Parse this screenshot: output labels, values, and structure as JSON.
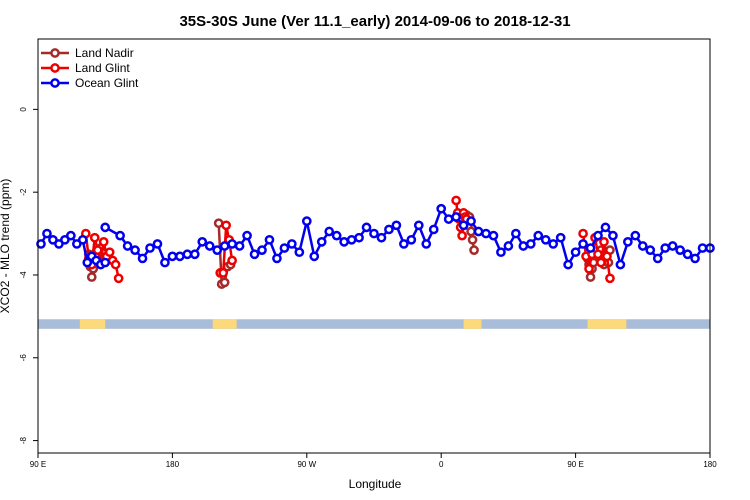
{
  "chart_data": {
    "type": "line",
    "title": "35S-30S June (Ver 11.1_early)   2014-09-06 to 2018-12-31",
    "xlabel": "Longitude",
    "ylabel": "XCO2 - MLO trend (ppm)",
    "x_ticks": [
      {
        "value": -180,
        "label": "90 E"
      },
      {
        "value": -90,
        "label": "180"
      },
      {
        "value": 0,
        "label": "90 W"
      },
      {
        "value": 90,
        "label": "0"
      },
      {
        "value": 180,
        "label": "90 E"
      },
      {
        "value": 270,
        "label": "180"
      }
    ],
    "y_ticks": [
      {
        "value": 0,
        "label": "0"
      },
      {
        "value": -2,
        "label": "-2"
      },
      {
        "value": -4,
        "label": "-4"
      },
      {
        "value": -6,
        "label": "-6"
      },
      {
        "value": -8,
        "label": "-8"
      }
    ],
    "xlim": [
      -180,
      270
    ],
    "ylim": [
      -8.3,
      1.7
    ],
    "legend_position": "top-left",
    "series": [
      {
        "name": "Land Nadir",
        "color": "#a52a2a",
        "segments": [
          {
            "x": [
              -146,
              -145,
              -144,
              -143,
              -142,
              -141,
              -140,
              -139,
              -138,
              -137
            ],
            "y": [
              -3.5,
              -3.8,
              -4.05,
              -3.85,
              -3.7,
              -3.45,
              -3.55,
              -3.7,
              -3.35,
              -3.45
            ]
          },
          {
            "x": [
              -59,
              -57,
              -55,
              -53,
              -51
            ],
            "y": [
              -2.75,
              -4.22,
              -4.18,
              -3.8,
              -3.75
            ]
          },
          {
            "x": [
              107,
              108,
              109,
              110,
              111,
              112
            ],
            "y": [
              -2.55,
              -2.8,
              -2.6,
              -2.95,
              -3.15,
              -3.4
            ]
          },
          {
            "x": [
              188,
              189,
              190,
              191,
              192,
              196,
              197,
              199,
              200,
              202,
              203
            ],
            "y": [
              -3.6,
              -3.75,
              -4.05,
              -3.85,
              -3.7,
              -3.5,
              -3.4,
              -3.75,
              -3.6,
              -3.7,
              -3.4
            ]
          }
        ]
      },
      {
        "name": "Land Glint",
        "color": "#ee0000",
        "segments": [
          {
            "x": [
              -148,
              -146,
              -144,
              -142,
              -140,
              -138,
              -136,
              -134,
              -132,
              -130,
              -128,
              -126
            ],
            "y": [
              -3.0,
              -3.6,
              -3.75,
              -3.1,
              -3.4,
              -3.7,
              -3.2,
              -3.55,
              -3.45,
              -3.65,
              -3.75,
              -4.08
            ]
          },
          {
            "x": [
              -58,
              -56,
              -54,
              -52,
              -50
            ],
            "y": [
              -3.95,
              -3.95,
              -2.8,
              -3.15,
              -3.65
            ]
          },
          {
            "x": [
              100,
              101,
              102,
              103,
              104,
              105,
              106,
              107
            ],
            "y": [
              -2.2,
              -2.5,
              -2.65,
              -2.85,
              -3.05,
              -2.5,
              -2.6,
              -2.65
            ]
          },
          {
            "x": [
              185,
              187,
              189,
              191,
              193,
              195,
              197,
              199,
              201,
              203
            ],
            "y": [
              -3.0,
              -3.55,
              -3.85,
              -3.5,
              -3.1,
              -3.5,
              -3.7,
              -3.2,
              -3.55,
              -4.08
            ]
          }
        ]
      },
      {
        "name": "Ocean Glint",
        "color": "#0000ee",
        "segments": [
          {
            "x": [
              -178,
              -174,
              -170,
              -166,
              -162,
              -158,
              -154,
              -150,
              -147,
              -144,
              -141,
              -138,
              -135
            ],
            "y": [
              -3.25,
              -3.0,
              -3.15,
              -3.25,
              -3.15,
              -3.05,
              -3.25,
              -3.15,
              -3.7,
              -3.55,
              -3.65,
              -3.75,
              -3.7
            ]
          },
          {
            "x": [
              -135,
              -125,
              -120,
              -115,
              -110,
              -105,
              -100,
              -95,
              -90,
              -85,
              -80,
              -75,
              -70,
              -65,
              -60,
              -55,
              -50,
              -45,
              -40,
              -35,
              -30,
              -25,
              -20,
              -15,
              -10,
              -5,
              0,
              5,
              10,
              15,
              20,
              25,
              30,
              35,
              40,
              45,
              50,
              55,
              60,
              65,
              70,
              75,
              80,
              85,
              90,
              95,
              100,
              105,
              110,
              115,
              120,
              125,
              130,
              135,
              140,
              145,
              150,
              155,
              160,
              165,
              170,
              175,
              180,
              185,
              190,
              195,
              200,
              205,
              210,
              215,
              220,
              225,
              230,
              235,
              240,
              245,
              250,
              255,
              260,
              265,
              270
            ],
            "y": [
              -2.85,
              -3.05,
              -3.3,
              -3.4,
              -3.6,
              -3.35,
              -3.25,
              -3.7,
              -3.55,
              -3.55,
              -3.5,
              -3.5,
              -3.2,
              -3.3,
              -3.4,
              -3.3,
              -3.25,
              -3.3,
              -3.05,
              -3.5,
              -3.4,
              -3.15,
              -3.6,
              -3.35,
              -3.25,
              -3.45,
              -2.7,
              -3.55,
              -3.2,
              -2.95,
              -3.05,
              -3.2,
              -3.15,
              -3.1,
              -2.85,
              -3.0,
              -3.1,
              -2.9,
              -2.8,
              -3.25,
              -3.15,
              -2.8,
              -3.25,
              -2.9,
              -2.4,
              -2.65,
              -2.6,
              -2.8,
              -2.7,
              -2.95,
              -3.0,
              -3.05,
              -3.45,
              -3.3,
              -3.0,
              -3.3,
              -3.25,
              -3.05,
              -3.15,
              -3.25,
              -3.1,
              -3.75,
              -3.45,
              -3.25,
              -3.35,
              -3.05,
              -2.85,
              -3.05,
              -3.75,
              -3.2,
              -3.05,
              -3.3,
              -3.4,
              -3.6,
              -3.35,
              -3.3,
              -3.4,
              -3.5,
              -3.6,
              -3.35,
              -3.35
            ]
          }
        ]
      }
    ],
    "land_band": {
      "y_from": -5.07,
      "y_to": -5.3,
      "ocean_color": "#a9bcd8",
      "land_color": "#fcd97a",
      "land_ranges": [
        [
          -152,
          -135
        ],
        [
          -63,
          -47
        ],
        [
          105,
          117
        ],
        [
          188,
          214
        ]
      ]
    }
  }
}
